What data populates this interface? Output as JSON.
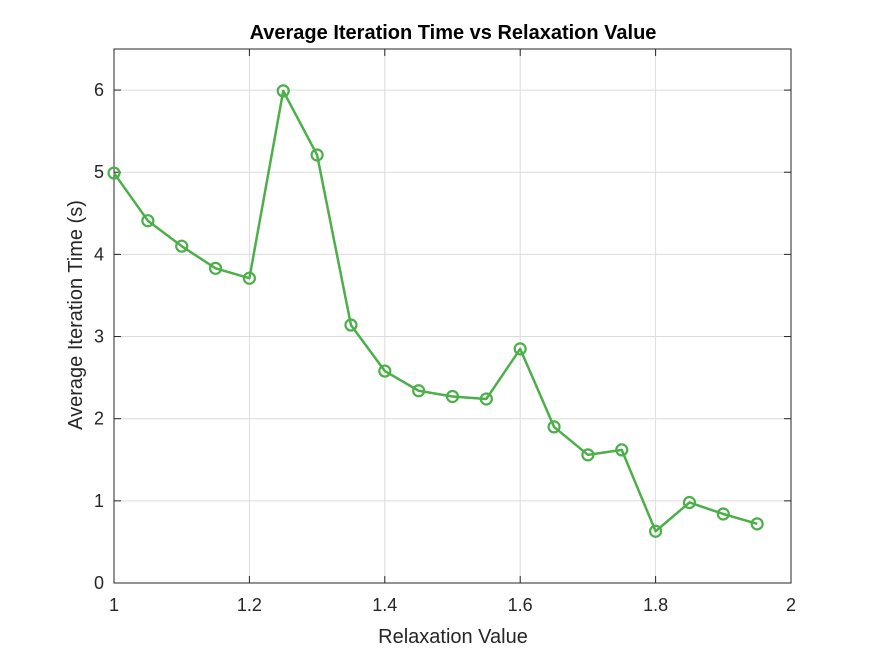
{
  "chart_data": {
    "type": "line",
    "title": "Average Iteration Time vs Relaxation Value",
    "xlabel": "Relaxation Value",
    "ylabel": "Average Iteration Time (s)",
    "xlim": [
      1,
      2
    ],
    "ylim": [
      0,
      6.5
    ],
    "xticks": [
      1,
      1.2,
      1.4,
      1.6,
      1.8,
      2
    ],
    "yticks": [
      0,
      1,
      2,
      3,
      4,
      5,
      6
    ],
    "xtick_labels": [
      "1",
      "1.2",
      "1.4",
      "1.6",
      "1.8",
      "2"
    ],
    "ytick_labels": [
      "0",
      "1",
      "2",
      "3",
      "4",
      "5",
      "6"
    ],
    "grid": true,
    "legend": "none",
    "series": [
      {
        "color": "#4daf4a",
        "marker": "circle",
        "x": [
          1.0,
          1.05,
          1.1,
          1.15,
          1.2,
          1.25,
          1.3,
          1.35,
          1.4,
          1.45,
          1.5,
          1.55,
          1.6,
          1.65,
          1.7,
          1.75,
          1.8,
          1.85,
          1.9,
          1.95
        ],
        "y": [
          4.99,
          4.41,
          4.1,
          3.83,
          3.71,
          5.99,
          5.21,
          3.14,
          2.58,
          2.34,
          2.27,
          2.24,
          2.85,
          1.9,
          1.56,
          1.62,
          0.63,
          0.98,
          0.84,
          0.72
        ]
      }
    ]
  }
}
